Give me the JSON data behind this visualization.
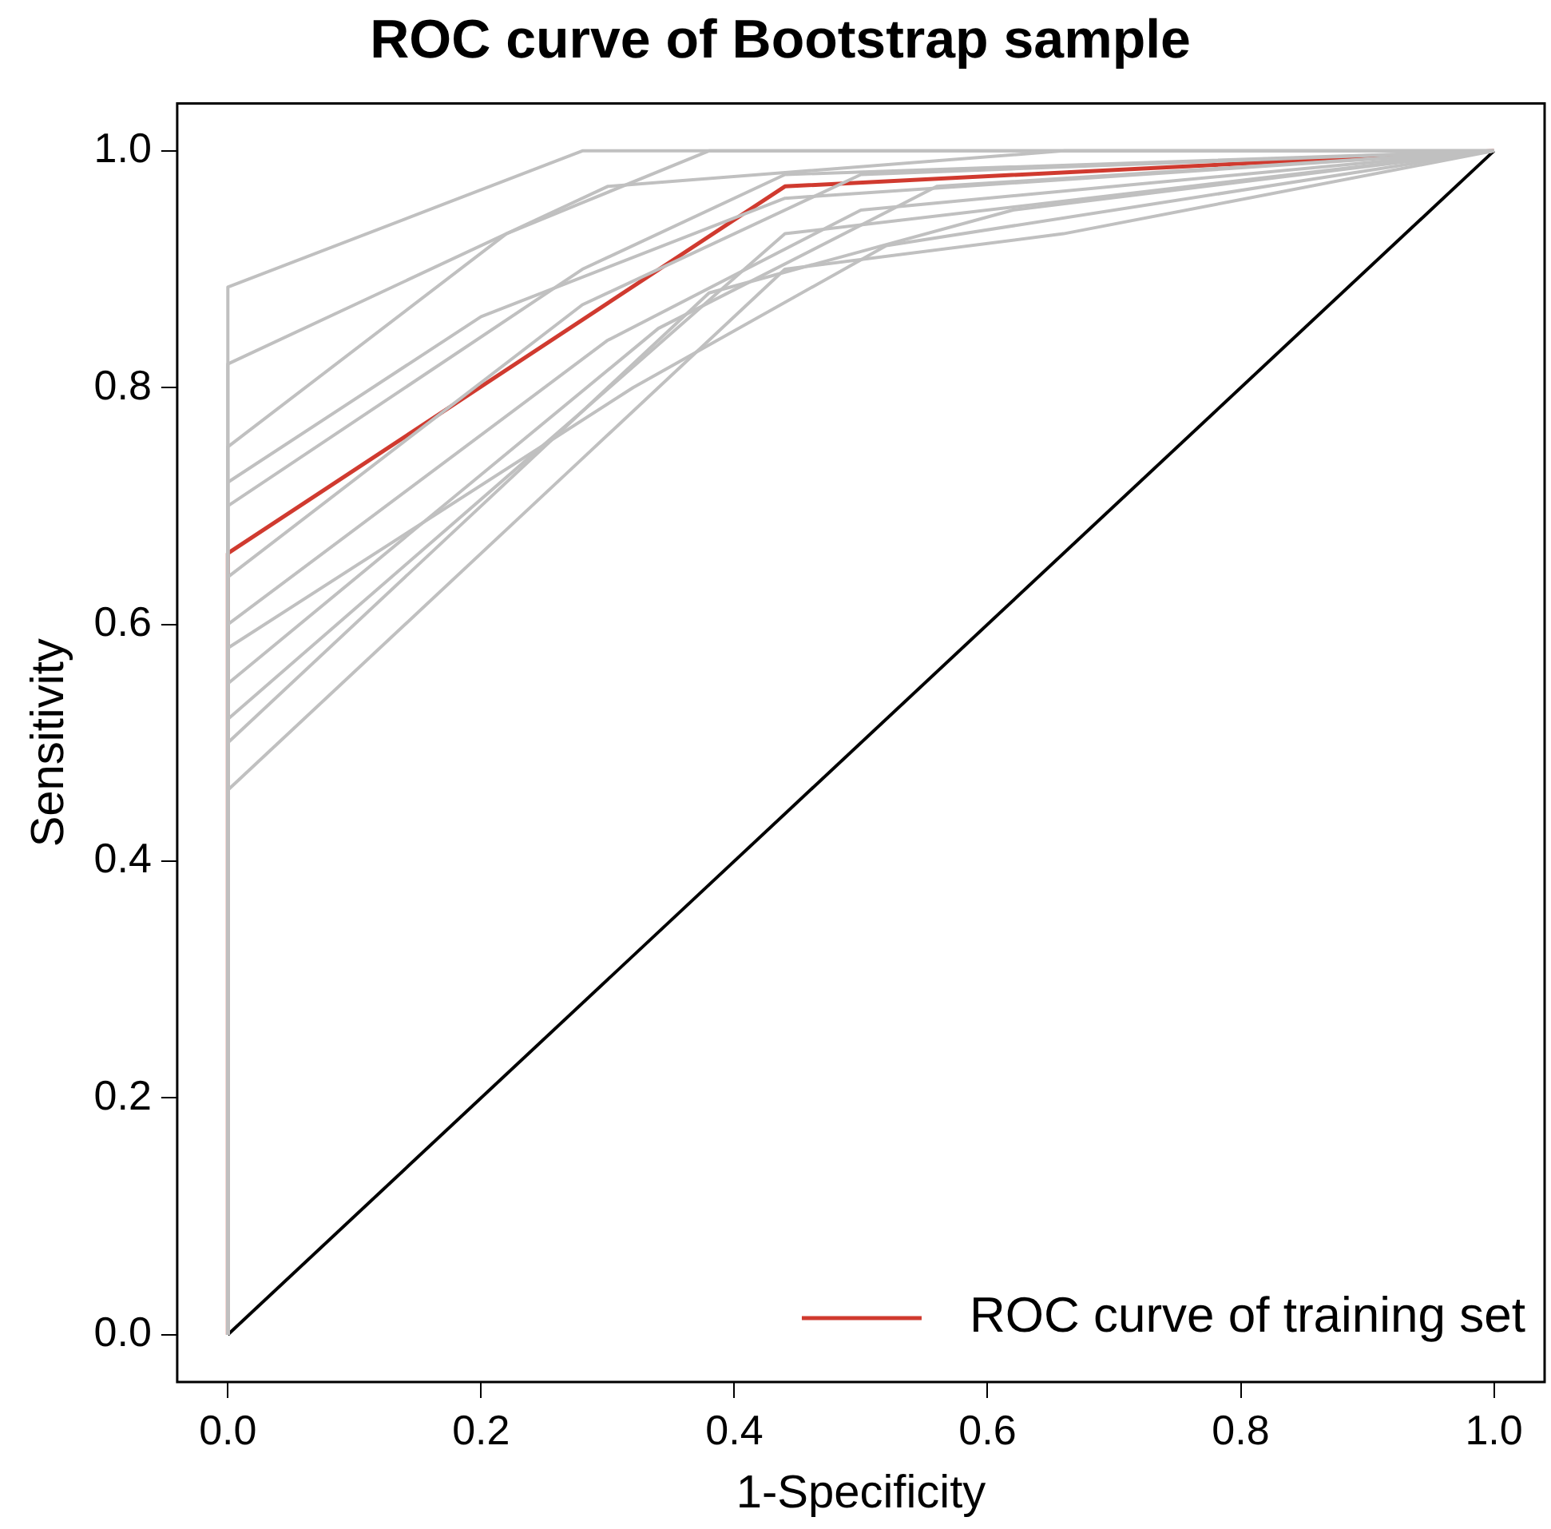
{
  "chart_data": {
    "type": "line",
    "title": "ROC curve of Bootstrap sample",
    "xlabel": "1-Specificity",
    "ylabel": "Sensitivity",
    "xlim": [
      -0.04,
      1.04
    ],
    "ylim": [
      -0.04,
      1.04
    ],
    "xticks": [
      {
        "value": 0,
        "label": "0.0"
      },
      0.2,
      0.4,
      0.6,
      0.8,
      {
        "value": 1,
        "label": "1.0"
      }
    ],
    "yticks": [
      {
        "value": 0,
        "label": "0.0"
      },
      0.2,
      0.4,
      0.6,
      0.8,
      {
        "value": 1,
        "label": "1.0"
      }
    ],
    "grid": false,
    "legend": "bottom right",
    "marker": "none",
    "line_style": "solid",
    "series": [
      {
        "color": "#c0c0c0",
        "x": [
          0,
          0,
          0.28,
          1
        ],
        "values": [
          0,
          0.885,
          1,
          1
        ]
      },
      {
        "color": "#c0c0c0",
        "x": [
          0,
          0,
          0.28,
          0.44,
          0.66,
          1
        ],
        "values": [
          0,
          0.46,
          0.74,
          0.9,
          0.93,
          1
        ]
      },
      {
        "color": "#c0c0c0",
        "x": [
          0,
          0,
          0.28,
          0.44,
          1
        ],
        "values": [
          0,
          0.52,
          0.78,
          0.93,
          1
        ]
      },
      {
        "color": "#c0c0c0",
        "x": [
          0,
          0,
          0.3,
          0.5,
          1
        ],
        "values": [
          0,
          0.6,
          0.84,
          0.95,
          1
        ]
      },
      {
        "color": "#c0c0c0",
        "x": [
          0,
          0,
          0.28,
          0.44,
          1
        ],
        "values": [
          0,
          0.7,
          0.9,
          0.98,
          1
        ]
      },
      {
        "color": "#c0c0c0",
        "x": [
          0,
          0,
          0.22,
          0.38,
          1
        ],
        "values": [
          0,
          0.75,
          0.93,
          1,
          1
        ]
      },
      {
        "color": "#c0c0c0",
        "x": [
          0,
          0,
          0.3,
          0.66,
          1
        ],
        "values": [
          0,
          0.82,
          0.97,
          1,
          1
        ]
      },
      {
        "color": "#c0c0c0",
        "x": [
          0,
          0,
          0.34,
          0.56,
          1
        ],
        "values": [
          0,
          0.55,
          0.85,
          0.97,
          1
        ]
      },
      {
        "color": "#c0c0c0",
        "x": [
          0,
          0,
          0.28,
          0.5,
          1
        ],
        "values": [
          0,
          0.64,
          0.87,
          0.98,
          1
        ]
      },
      {
        "color": "#c0c0c0",
        "x": [
          0,
          0,
          0.38,
          0.62,
          1
        ],
        "values": [
          0,
          0.5,
          0.88,
          0.95,
          1
        ]
      },
      {
        "color": "#c0c0c0",
        "x": [
          0,
          0,
          0.2,
          0.44,
          1
        ],
        "values": [
          0,
          0.72,
          0.86,
          0.96,
          1
        ]
      },
      {
        "color": "#c0c0c0",
        "x": [
          0,
          0,
          0.32,
          0.52,
          1
        ],
        "values": [
          0,
          0.58,
          0.8,
          0.92,
          1
        ]
      },
      {
        "color": "#000000",
        "x": [
          0,
          1
        ],
        "values": [
          0,
          1
        ]
      },
      {
        "name": "ROC curve of training set",
        "color": "#d03a2f",
        "x": [
          0,
          0,
          0.44,
          1
        ],
        "values": [
          0,
          0.66,
          0.97,
          1
        ]
      }
    ]
  }
}
